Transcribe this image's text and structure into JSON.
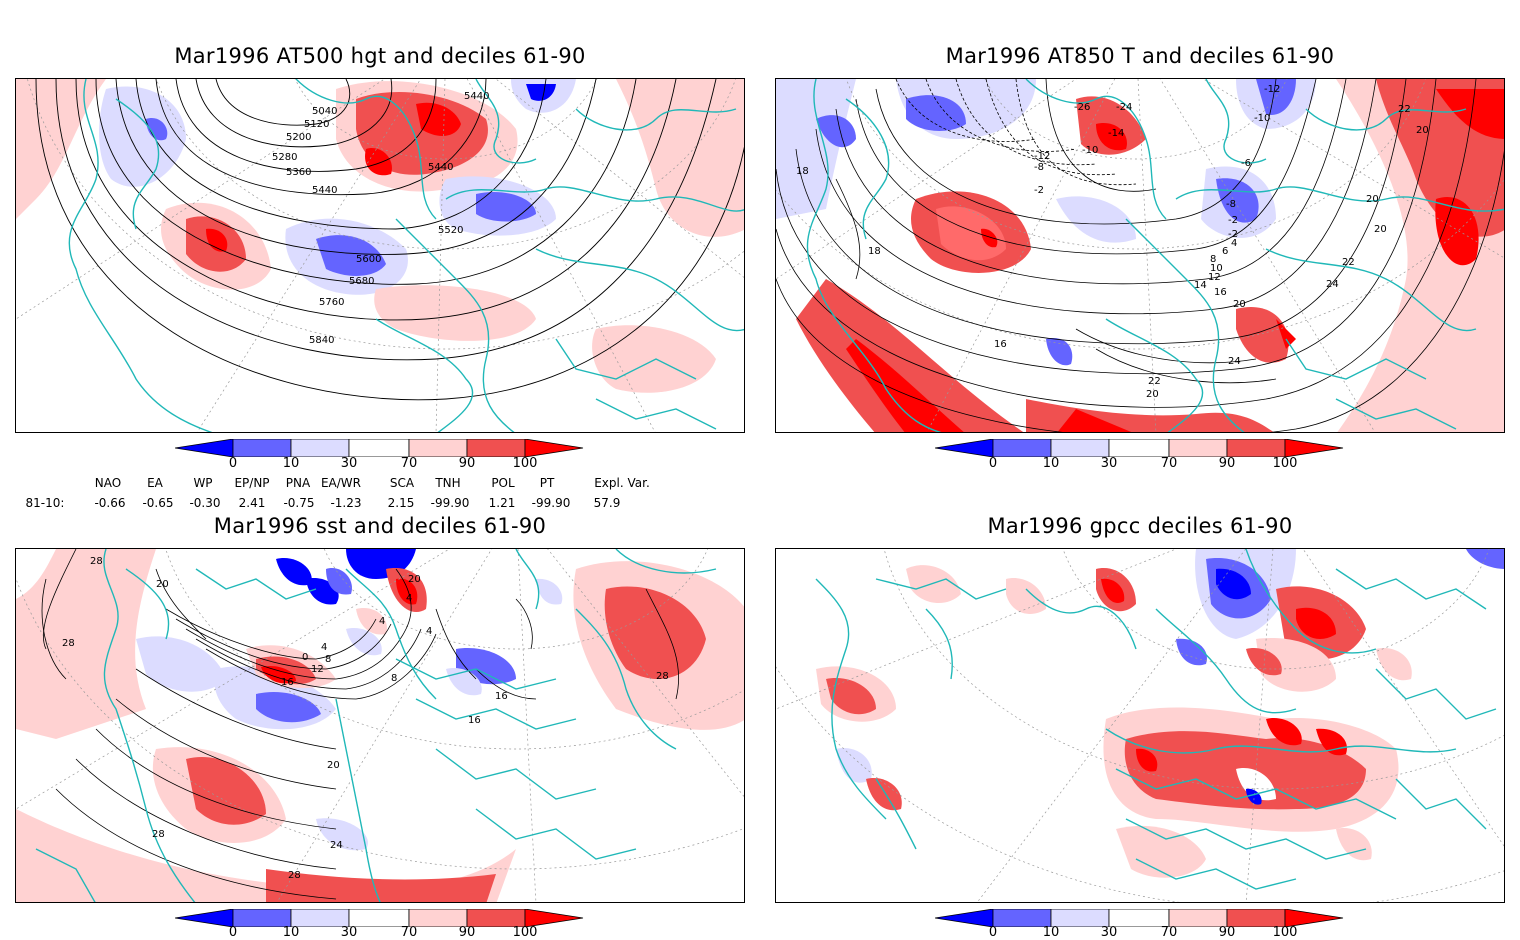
{
  "panels": [
    {
      "id": "tl",
      "title": "Mar1996 AT500 hgt and deciles 61-90",
      "contour_labels": [
        "5040",
        "5120",
        "5200",
        "5280",
        "5360",
        "5440",
        "5440",
        "5440",
        "5520",
        "5600",
        "5680",
        "5760",
        "5840"
      ]
    },
    {
      "id": "tr",
      "title": "Mar1996 AT850 T and deciles 61-90",
      "contour_labels": [
        "-26",
        "-24",
        "-14",
        "-10",
        "-12",
        "-8",
        "-2",
        "-12",
        "-10",
        "-6",
        "-8",
        "-2",
        "-2",
        "4",
        "6",
        "8",
        "10",
        "12",
        "14",
        "16",
        "18",
        "18",
        "20",
        "20",
        "20",
        "22",
        "22",
        "24",
        "24",
        "22",
        "20",
        "16",
        "20"
      ]
    },
    {
      "id": "bl",
      "title": "Mar1996 sst and deciles 61-90",
      "contour_labels": [
        "28",
        "20",
        "28",
        "0",
        "4",
        "4",
        "8",
        "12",
        "16",
        "20",
        "16",
        "16",
        "8",
        "4",
        "28",
        "24",
        "28",
        "20",
        "28",
        "4"
      ]
    },
    {
      "id": "br",
      "title": "Mar1996 gpcc deciles 61-90",
      "contour_labels": []
    }
  ],
  "colorbar": {
    "labels": [
      "0",
      "10",
      "30",
      "70",
      "90",
      "100"
    ],
    "colors": {
      "dark_blue": "#0000ff",
      "mid_blue": "#6464ff",
      "light_blue": "#dcdcff",
      "white": "#ffffff",
      "light_red": "#ffd2d2",
      "mid_red": "#f05050",
      "dark_red": "#ff0000"
    }
  },
  "indices": {
    "headers": [
      "NAO",
      "EA",
      "WP",
      "EP/NP",
      "PNA",
      "EA/WR",
      "SCA",
      "TNH",
      "POL",
      "PT",
      "Expl. Var."
    ],
    "row_label": "81-10:",
    "values": [
      "-0.66",
      "-0.65",
      "-0.30",
      "2.41",
      "-0.75",
      "-1.23",
      "2.15",
      "-99.90",
      "1.21",
      "-99.90",
      "57.9"
    ]
  },
  "colors": {
    "coast": "#20b8b8",
    "contour": "#000000",
    "grid": "#999999"
  }
}
